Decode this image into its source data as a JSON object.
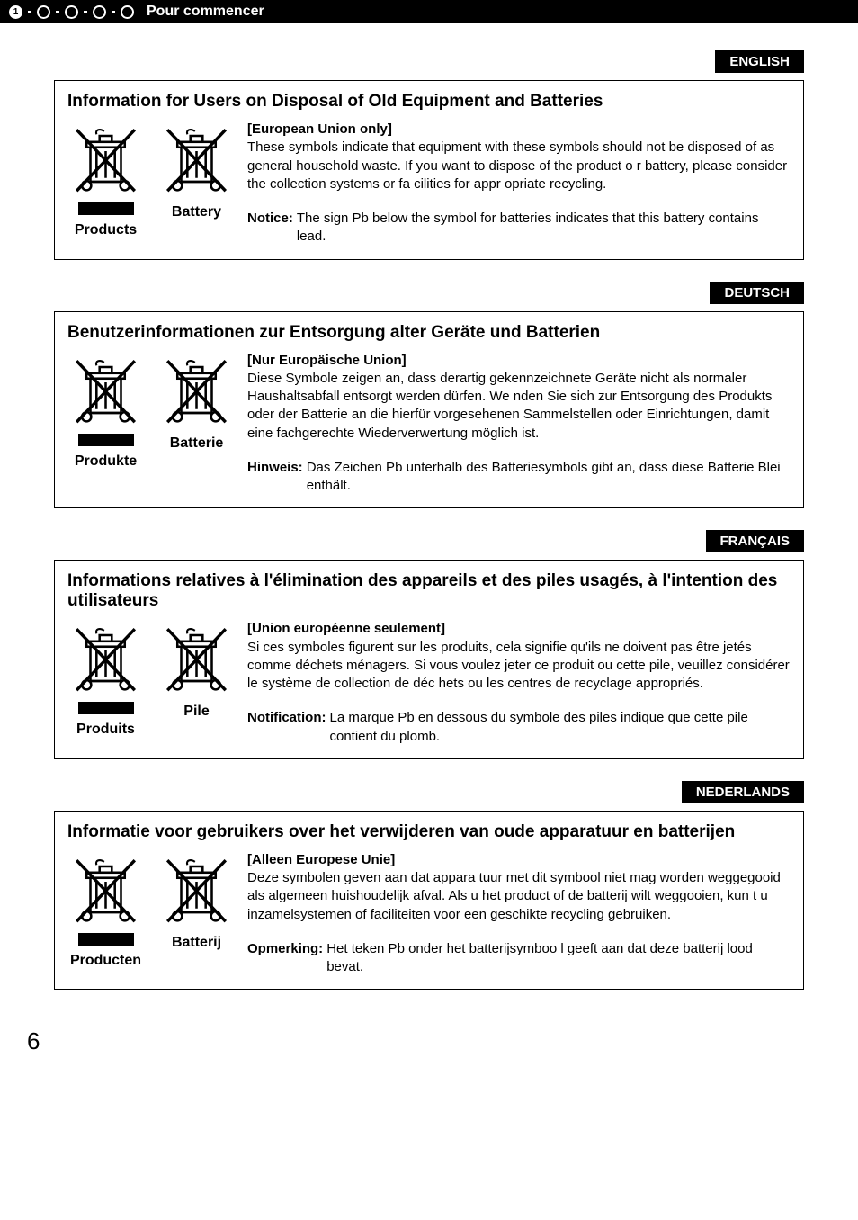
{
  "header": {
    "step_number": "1",
    "title": "Pour commencer"
  },
  "sections": [
    {
      "lang_badge": "ENGLISH",
      "title": "Information for Users on Disposal of Old Equipment and Batteries",
      "products_label": "Products",
      "battery_label": "Battery",
      "subheading": "[European Union only]",
      "body": "These symbols indicate that equipment with these symbols should not be disposed of as general household waste. If you want to dispose of the product o r battery, please consider the collection systems or fa cilities for appr opriate recycling.",
      "notice_label": "Notice:",
      "notice_text": "The sign Pb below the symbol for batteries indicates that this battery contains lead."
    },
    {
      "lang_badge": "DEUTSCH",
      "title": "Benutzerinformationen zur Entsorgung alter Geräte und Batterien",
      "products_label": "Produkte",
      "battery_label": "Batterie",
      "subheading": "[Nur Europäische Union]",
      "body": "Diese Symbole zeigen an, dass derartig gekennzeichnete Geräte nicht als normaler Haushaltsabfall entsorgt werden dürfen. We nden Sie sich zur Entsorgung des Produkts oder der Batterie an die hierfür vorgesehenen Sammelstellen oder Einrichtungen, damit eine fachgerechte Wiederverwertung möglich ist.",
      "notice_label": "Hinweis:",
      "notice_text": "Das Zeichen Pb unterhalb des Batteriesymbols gibt an, dass diese Batterie Blei enthält."
    },
    {
      "lang_badge": "FRANÇAIS",
      "title": "Informations relatives à l'élimination des appareils et des piles usagés, à l'intention des utilisateurs",
      "products_label": "Produits",
      "battery_label": "Pile",
      "subheading": "[Union européenne seulement]",
      "body": "Si ces symboles figurent sur les produits, cela signifie qu'ils ne doivent pas être jetés comme déchets ménagers. Si vous voulez  jeter ce produit ou cette pile, veuillez considérer le système de collection de déc hets ou les centres de recyclage appropriés.",
      "notice_label": "Notification:",
      "notice_text": "La marque Pb en dessous du symbole des piles indique que cette pile contient du plomb."
    },
    {
      "lang_badge": "NEDERLANDS",
      "title": "Informatie voor gebruikers over het verwijderen van oude apparatuur en batterijen",
      "products_label": "Producten",
      "battery_label": "Batterij",
      "subheading": "[Alleen Europese Unie]",
      "body": "Deze symbolen geven aan dat appara tuur met dit symbool niet mag worden weggegooid als algemeen huishoudelijk afval. Als u het product of de batterij wilt weggooien, kun t u inzamelsystemen of faciliteiten voor een geschikte recycling gebruiken.",
      "notice_label": "Opmerking:",
      "notice_text": "Het teken Pb onder het batterijsymboo l geeft aan dat deze batterij lood bevat."
    }
  ],
  "page_number": "6",
  "styling": {
    "bg_color": "#ffffff",
    "text_color": "#000000",
    "header_bg": "#000000",
    "header_text": "#ffffff",
    "badge_bg": "#000000",
    "badge_text": "#ffffff",
    "border_color": "#000000",
    "body_font_size": 15,
    "title_font_size": 19
  }
}
